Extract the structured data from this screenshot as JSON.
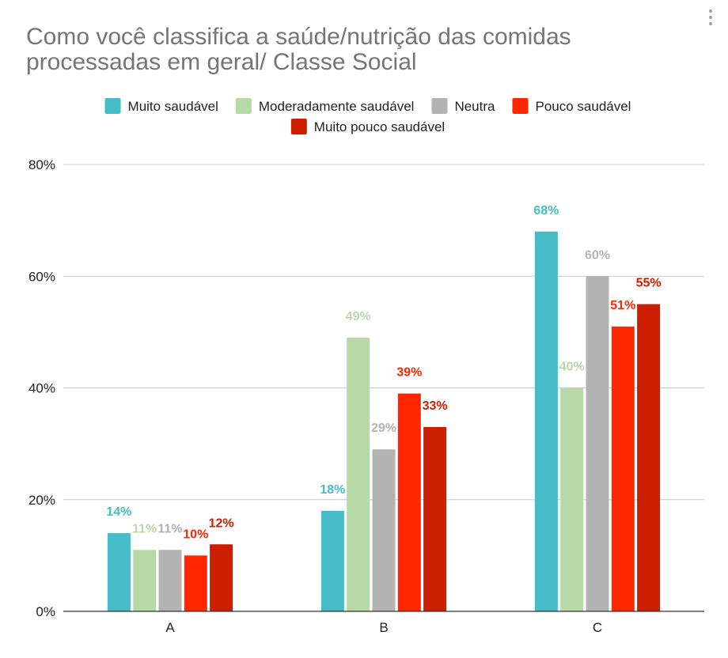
{
  "chart_data": {
    "type": "bar",
    "title_lines": [
      "Como você classifica a saúde/nutrição das comidas",
      "processadas em geral/ Classe Social"
    ],
    "categories": [
      "A",
      "B",
      "C"
    ],
    "series": [
      {
        "name": "Muito saudável",
        "color": "#46bdc6",
        "values": [
          14,
          18,
          68
        ],
        "labels": [
          "14%",
          "18%",
          "68%"
        ]
      },
      {
        "name": "Moderadamente saudável",
        "color": "#b7d9a8",
        "values": [
          11,
          49,
          40
        ],
        "labels": [
          "11%",
          "49%",
          "40%"
        ]
      },
      {
        "name": "Neutra",
        "color": "#b3b3b3",
        "values": [
          11,
          29,
          60
        ],
        "labels": [
          "11%",
          "29%",
          "60%"
        ]
      },
      {
        "name": "Pouco saudável",
        "color": "#ff2600",
        "values": [
          10,
          39,
          51
        ],
        "labels": [
          "10%",
          "39%",
          "51%"
        ]
      },
      {
        "name": "Muito pouco saudável",
        "color": "#cc1f00",
        "values": [
          12,
          33,
          55
        ],
        "labels": [
          "12%",
          "33%",
          "55%"
        ]
      }
    ],
    "y_ticks": [
      0,
      20,
      40,
      60,
      80
    ],
    "y_tick_labels": [
      "0%",
      "20%",
      "40%",
      "60%",
      "80%"
    ],
    "ylim": [
      0,
      80
    ],
    "xlabel": "",
    "ylabel": "",
    "grid": true,
    "legend_position": "top",
    "menu_icon": "more-vert-icon"
  }
}
